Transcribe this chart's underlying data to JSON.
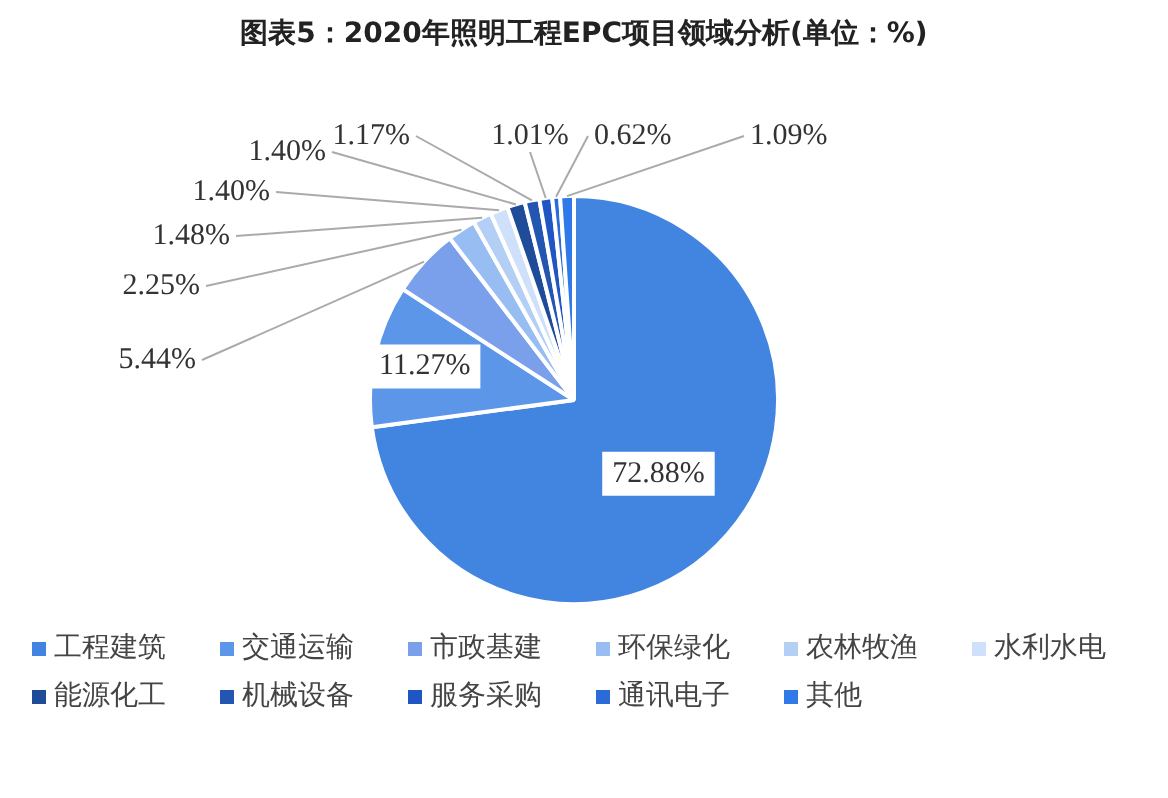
{
  "chart_data": {
    "type": "pie",
    "title": "图表5：2020年照明工程EPC项目领域分析(单位：%)",
    "categories": [
      "工程建筑",
      "交通运输",
      "市政基建",
      "环保绿化",
      "农林牧渔",
      "水利水电",
      "能源化工",
      "机械设备",
      "服务采购",
      "通讯电子",
      "其他"
    ],
    "values": [
      72.88,
      11.27,
      5.44,
      2.25,
      1.48,
      1.4,
      1.4,
      1.17,
      1.01,
      0.62,
      1.09
    ],
    "value_labels": [
      "72.88%",
      "11.27%",
      "5.44%",
      "2.25%",
      "1.48%",
      "1.40%",
      "1.40%",
      "1.17%",
      "1.01%",
      "0.62%",
      "1.09%"
    ],
    "colors": [
      "#4285e0",
      "#5b96e8",
      "#7aa0ec",
      "#97bdf2",
      "#b3cff5",
      "#cfe0fa",
      "#1f4c99",
      "#2356b0",
      "#1f56c4",
      "#2a6bd8",
      "#2f7ae8"
    ],
    "legend": "bottom"
  }
}
